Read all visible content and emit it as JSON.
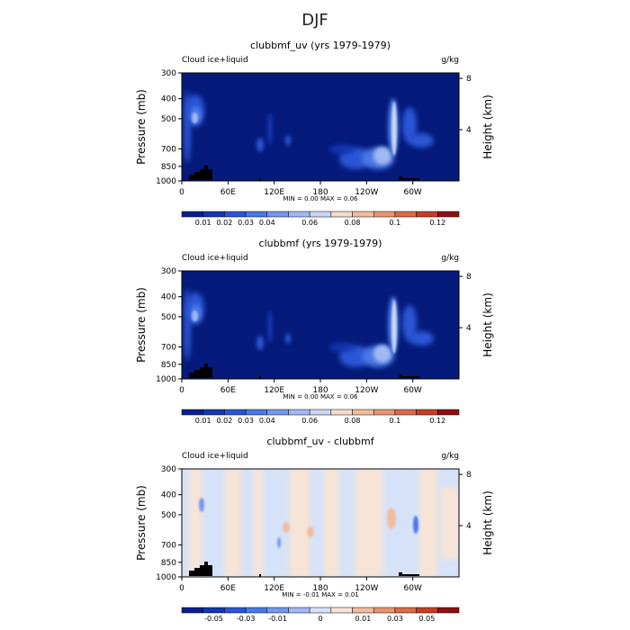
{
  "figure": {
    "title": "DJF"
  },
  "colors": {
    "seq_scale": [
      "#0a1f8f",
      "#1536b3",
      "#2a56d6",
      "#4a78e6",
      "#7497ee",
      "#a1b8f2",
      "#c9d7f6",
      "#f4dccc",
      "#f0bca0",
      "#e89473",
      "#da6a49",
      "#c53d28",
      "#8e1010"
    ],
    "diff_scale": [
      "#0a1f8f",
      "#1536b3",
      "#2a56d6",
      "#4a78e6",
      "#7497ee",
      "#a1b8f2",
      "#d6e2f7",
      "#f7e4d6",
      "#f0bca0",
      "#e89473",
      "#da6a49",
      "#c53d28",
      "#8e1010"
    ],
    "background": "#051a7a",
    "land": "#000000"
  },
  "panels": [
    {
      "title": "clubbmf_uv (yrs 1979-1979)",
      "left_label": "Cloud ice+liquid",
      "right_label": "g/kg",
      "minmax": "MIN =    0.00   MAX =    0.06",
      "colorbar_labels": [
        "0.01",
        "0.02",
        "0.03",
        "0.04",
        "0.06",
        "0.08",
        "0.1",
        "0.12"
      ]
    },
    {
      "title": "clubbmf (yrs 1979-1979)",
      "left_label": "Cloud ice+liquid",
      "right_label": "g/kg",
      "minmax": "MIN =    0.00   MAX =    0.06",
      "colorbar_labels": [
        "0.01",
        "0.02",
        "0.03",
        "0.04",
        "0.06",
        "0.08",
        "0.1",
        "0.12"
      ]
    },
    {
      "title": "clubbmf_uv - clubbmf",
      "left_label": "Cloud ice+liquid",
      "right_label": "g/kg",
      "minmax": "MIN =   -0.01   MAX =    0.01",
      "colorbar_labels": [
        "-0.05",
        "-0.03",
        "-0.01",
        "0",
        "0.01",
        "0.03",
        "0.05"
      ]
    }
  ],
  "chart_data": [
    {
      "type": "heatmap",
      "title": "clubbmf_uv (yrs 1979-1979)",
      "ylabel": "Pressure (mb)",
      "y2label": "Height (km)",
      "xticks": [
        "0",
        "60E",
        "120E",
        "180",
        "120W",
        "60W"
      ],
      "xtick_values": [
        0,
        60,
        120,
        180,
        240,
        300
      ],
      "xlim": [
        0,
        360
      ],
      "yticks": [
        "300",
        "400",
        "500",
        "700",
        "850",
        "1000"
      ],
      "ytick_values": [
        300,
        400,
        500,
        700,
        850,
        1000
      ],
      "ylim": [
        1000,
        300
      ],
      "y2ticks": [
        "4",
        "8"
      ],
      "y2tick_values": [
        4,
        8
      ],
      "min": 0.0,
      "max": 0.06,
      "levels": [
        0.01,
        0.02,
        0.03,
        0.04,
        0.06,
        0.08,
        0.1,
        0.12
      ]
    },
    {
      "type": "heatmap",
      "title": "clubbmf (yrs 1979-1979)",
      "ylabel": "Pressure (mb)",
      "y2label": "Height (km)",
      "xticks": [
        "0",
        "60E",
        "120E",
        "180",
        "120W",
        "60W"
      ],
      "xtick_values": [
        0,
        60,
        120,
        180,
        240,
        300
      ],
      "xlim": [
        0,
        360
      ],
      "yticks": [
        "300",
        "400",
        "500",
        "700",
        "850",
        "1000"
      ],
      "ytick_values": [
        300,
        400,
        500,
        700,
        850,
        1000
      ],
      "ylim": [
        1000,
        300
      ],
      "y2ticks": [
        "4",
        "8"
      ],
      "y2tick_values": [
        4,
        8
      ],
      "min": 0.0,
      "max": 0.06,
      "levels": [
        0.01,
        0.02,
        0.03,
        0.04,
        0.06,
        0.08,
        0.1,
        0.12
      ]
    },
    {
      "type": "heatmap",
      "title": "clubbmf_uv - clubbmf",
      "ylabel": "Pressure (mb)",
      "y2label": "Height (km)",
      "xticks": [
        "0",
        "60E",
        "120E",
        "180",
        "120W",
        "60W"
      ],
      "xtick_values": [
        0,
        60,
        120,
        180,
        240,
        300
      ],
      "xlim": [
        0,
        360
      ],
      "yticks": [
        "300",
        "400",
        "500",
        "700",
        "850",
        "1000"
      ],
      "ytick_values": [
        300,
        400,
        500,
        700,
        850,
        1000
      ],
      "ylim": [
        1000,
        300
      ],
      "y2ticks": [
        "4",
        "8"
      ],
      "y2tick_values": [
        4,
        8
      ],
      "min": -0.01,
      "max": 0.01,
      "levels": [
        -0.05,
        -0.03,
        -0.01,
        0,
        0.01,
        0.03,
        0.05
      ]
    }
  ]
}
